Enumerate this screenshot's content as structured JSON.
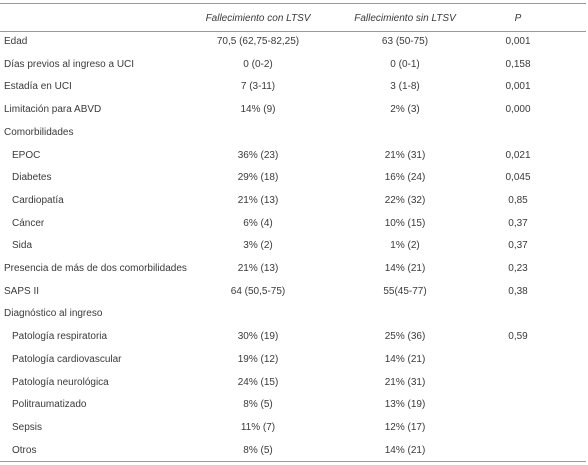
{
  "table": {
    "columns": [
      "Fallecimiento con LTSV",
      "Fallecimiento sin LTSV",
      "P"
    ],
    "rows": [
      {
        "label": "Edad",
        "values": [
          "70,5 (62,75-82,25)",
          "63 (50-75)",
          "0,001"
        ]
      },
      {
        "label": "Días previos al ingreso a UCI",
        "values": [
          "0 (0-2)",
          "0 (0-1)",
          "0,158"
        ]
      },
      {
        "label": "Estadía en UCI",
        "values": [
          "7 (3-11)",
          "3 (1-8)",
          "0,001"
        ]
      },
      {
        "label": "Limitación para ABVD",
        "values": [
          "14% (9)",
          "2% (3)",
          "0,000"
        ]
      },
      {
        "label": "Comorbilidades",
        "items": [
          {
            "label": "EPOC",
            "values": [
              "36% (23)",
              "21% (31)",
              "0,021"
            ]
          },
          {
            "label": "Diabetes",
            "values": [
              "29% (18)",
              "16% (24)",
              "0,045"
            ]
          },
          {
            "label": "Cardiopatía",
            "values": [
              "21% (13)",
              "22% (32)",
              "0,85"
            ]
          },
          {
            "label": "Cáncer",
            "values": [
              "6% (4)",
              "10% (15)",
              "0,37"
            ]
          },
          {
            "label": "Sida",
            "values": [
              "3% (2)",
              "1% (2)",
              "0,37"
            ]
          }
        ]
      },
      {
        "label": "Presencia de más de dos comorbilidades",
        "values": [
          "21% (13)",
          "14% (21)",
          "0,23"
        ]
      },
      {
        "label": "SAPS II",
        "values": [
          "64 (50,5-75)",
          "55(45-77)",
          "0,38"
        ]
      },
      {
        "label": "Diagnóstico al ingreso",
        "items": [
          {
            "label": "Patología respiratoria",
            "values": [
              "30% (19)",
              "25% (36)",
              "0,59"
            ]
          },
          {
            "label": "Patología cardiovascular",
            "values": [
              "19% (12)",
              "14% (21)"
            ]
          },
          {
            "label": "Patología neurológica",
            "values": [
              "24% (15)",
              "21% (31)"
            ]
          },
          {
            "label": "Politraumatizado",
            "values": [
              "8% (5)",
              "13% (19)"
            ]
          },
          {
            "label": "Sepsis",
            "values": [
              "11% (7)",
              "12% (17)"
            ]
          },
          {
            "label": "Otros",
            "values": [
              "8% (5)",
              "14% (21)"
            ]
          }
        ]
      }
    ]
  }
}
